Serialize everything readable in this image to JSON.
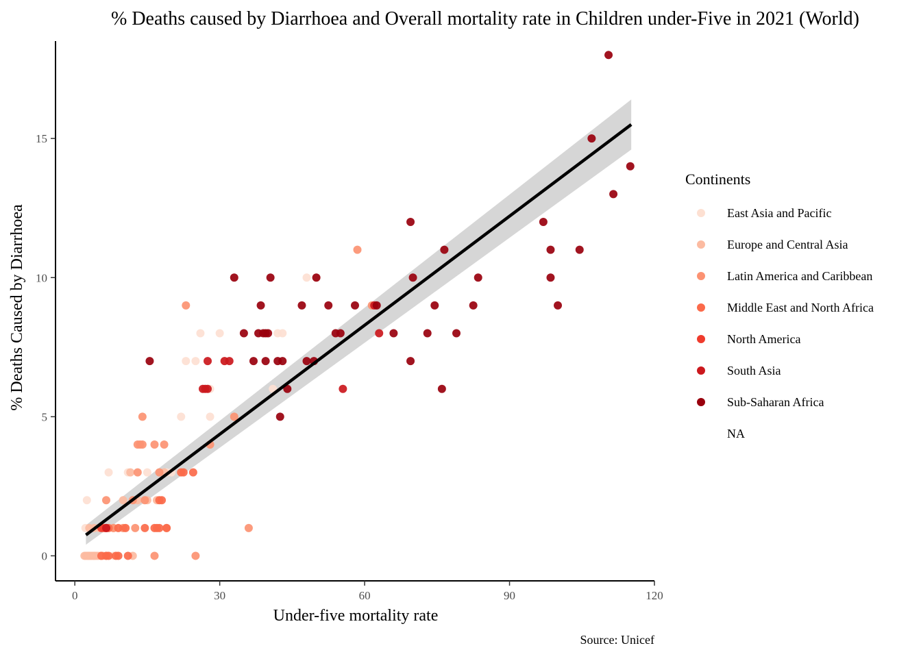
{
  "chart_data": {
    "type": "scatter",
    "title": "% Deaths caused by Diarrhoea and Overall mortality rate in Children under-Five in 2021 (World)",
    "xlabel": "Under-five mortality rate",
    "ylabel": "% Deaths Caused by Diarrhoea",
    "caption": "Source: Unicef",
    "xlim": [
      -4,
      120
    ],
    "ylim": [
      -0.9,
      18.5
    ],
    "x_ticks": [
      0,
      30,
      60,
      90,
      120
    ],
    "y_ticks": [
      0,
      5,
      10,
      15
    ],
    "grid": false,
    "legend": {
      "title": "Continents",
      "placement": "right",
      "entries": [
        {
          "label": "East Asia and Pacific",
          "color": "#fde0d2"
        },
        {
          "label": "Europe and Central Asia",
          "color": "#fcbba1"
        },
        {
          "label": "Latin America and Caribbean",
          "color": "#fc9272"
        },
        {
          "label": "Middle East and North Africa",
          "color": "#fb6a4a"
        },
        {
          "label": "North America",
          "color": "#ef3b2c"
        },
        {
          "label": "South Asia",
          "color": "#cb181d"
        },
        {
          "label": "Sub-Saharan Africa",
          "color": "#99000d"
        },
        {
          "label": "NA",
          "color": "#ffffff"
        }
      ]
    },
    "trend": {
      "x": [
        2.3,
        115.2
      ],
      "y": [
        0.75,
        15.5
      ],
      "ci_upper": [
        1.1,
        16.4
      ],
      "ci_lower": [
        0.4,
        14.6
      ],
      "line_color": "#000000",
      "band_color": "#cccccc"
    },
    "series": [
      {
        "name": "East Asia and Pacific",
        "color": "#fde0d2",
        "points": [
          [
            2.5,
            2
          ],
          [
            2.2,
            1
          ],
          [
            3,
            0
          ],
          [
            5,
            1
          ],
          [
            7,
            3
          ],
          [
            11,
            3
          ],
          [
            15,
            3
          ],
          [
            17,
            2
          ],
          [
            19,
            3
          ],
          [
            22,
            5
          ],
          [
            23,
            7
          ],
          [
            25,
            7
          ],
          [
            26,
            8
          ],
          [
            28,
            5
          ],
          [
            28,
            6
          ],
          [
            30,
            8
          ],
          [
            31,
            7
          ],
          [
            42,
            8
          ],
          [
            43,
            8
          ],
          [
            48,
            10
          ],
          [
            50,
            10
          ],
          [
            41,
            6
          ],
          [
            20,
            3
          ],
          [
            10,
            1
          ],
          [
            4,
            0
          ],
          [
            8,
            0
          ]
        ]
      },
      {
        "name": "Europe and Central Asia",
        "color": "#fcbba1",
        "points": [
          [
            2,
            0
          ],
          [
            2.3,
            0
          ],
          [
            2.6,
            0
          ],
          [
            2.9,
            0
          ],
          [
            3.2,
            0
          ],
          [
            3.5,
            0
          ],
          [
            3.8,
            0
          ],
          [
            4.1,
            0
          ],
          [
            4.4,
            0
          ],
          [
            4.8,
            0
          ],
          [
            5.3,
            0
          ],
          [
            5.8,
            0
          ],
          [
            6.5,
            0
          ],
          [
            3,
            1
          ],
          [
            4,
            1
          ],
          [
            5,
            1
          ],
          [
            6,
            1
          ],
          [
            8,
            1
          ],
          [
            10,
            2
          ],
          [
            11.5,
            3
          ],
          [
            13,
            2
          ],
          [
            15,
            2
          ],
          [
            17,
            2
          ],
          [
            18.5,
            3
          ],
          [
            12,
            0
          ]
        ]
      },
      {
        "name": "Latin America and Caribbean",
        "color": "#fc9272",
        "points": [
          [
            6.5,
            2
          ],
          [
            8,
            1
          ],
          [
            10,
            1
          ],
          [
            12,
            2
          ],
          [
            13,
            3
          ],
          [
            13,
            4
          ],
          [
            13.5,
            4
          ],
          [
            14,
            4
          ],
          [
            14.5,
            2
          ],
          [
            16.5,
            4
          ],
          [
            17.5,
            3
          ],
          [
            18.5,
            4
          ],
          [
            14,
            5
          ],
          [
            23,
            9
          ],
          [
            33,
            5
          ],
          [
            36,
            1
          ],
          [
            58.5,
            11
          ],
          [
            61.5,
            9
          ],
          [
            28,
            4
          ],
          [
            16.5,
            0
          ],
          [
            25,
            0
          ],
          [
            12.5,
            1
          ],
          [
            19,
            1
          ]
        ]
      },
      {
        "name": "Middle East and North Africa",
        "color": "#fb6a4a",
        "points": [
          [
            5.5,
            0
          ],
          [
            6.5,
            0
          ],
          [
            7,
            0
          ],
          [
            8.5,
            0
          ],
          [
            9,
            0
          ],
          [
            11,
            0
          ],
          [
            6,
            1
          ],
          [
            7,
            1
          ],
          [
            9,
            1
          ],
          [
            10.5,
            1
          ],
          [
            14.5,
            1
          ],
          [
            16.5,
            1
          ],
          [
            17,
            1
          ],
          [
            17.5,
            1
          ],
          [
            19,
            1
          ],
          [
            17.5,
            2
          ],
          [
            22.5,
            3
          ],
          [
            24.5,
            3
          ],
          [
            22,
            3
          ],
          [
            18,
            2
          ]
        ]
      },
      {
        "name": "North America",
        "color": "#ef3b2c",
        "points": [
          [
            5.5,
            1
          ],
          [
            6.5,
            1
          ]
        ]
      },
      {
        "name": "South Asia",
        "color": "#cb181d",
        "points": [
          [
            6.5,
            1
          ],
          [
            26.5,
            6
          ],
          [
            27.5,
            6
          ],
          [
            27.5,
            7
          ],
          [
            31,
            7
          ],
          [
            55.5,
            6
          ],
          [
            62,
            9
          ],
          [
            63,
            8
          ],
          [
            27,
            6
          ],
          [
            32,
            7
          ]
        ]
      },
      {
        "name": "Sub-Saharan Africa",
        "color": "#99000d",
        "points": [
          [
            15.5,
            7
          ],
          [
            33,
            10
          ],
          [
            35,
            8
          ],
          [
            37,
            7
          ],
          [
            38,
            8
          ],
          [
            38.5,
            9
          ],
          [
            39,
            8
          ],
          [
            39.5,
            7
          ],
          [
            39.5,
            8
          ],
          [
            40,
            8
          ],
          [
            40.5,
            10
          ],
          [
            42,
            7
          ],
          [
            42.5,
            5
          ],
          [
            43,
            7
          ],
          [
            44,
            6
          ],
          [
            47,
            9
          ],
          [
            48,
            7
          ],
          [
            49.5,
            7
          ],
          [
            50,
            10
          ],
          [
            52.5,
            9
          ],
          [
            54,
            8
          ],
          [
            55,
            8
          ],
          [
            58,
            9
          ],
          [
            62.5,
            9
          ],
          [
            66,
            8
          ],
          [
            69.5,
            7
          ],
          [
            69.5,
            12
          ],
          [
            70,
            10
          ],
          [
            73,
            8
          ],
          [
            74.5,
            9
          ],
          [
            76,
            6
          ],
          [
            76.5,
            11
          ],
          [
            79,
            8
          ],
          [
            82.5,
            9
          ],
          [
            83.5,
            10
          ],
          [
            97,
            12
          ],
          [
            98.5,
            11
          ],
          [
            98.5,
            10
          ],
          [
            100,
            9
          ],
          [
            104.5,
            11
          ],
          [
            107,
            15
          ],
          [
            110.5,
            18
          ],
          [
            111.5,
            13
          ],
          [
            115,
            14
          ]
        ]
      }
    ]
  }
}
